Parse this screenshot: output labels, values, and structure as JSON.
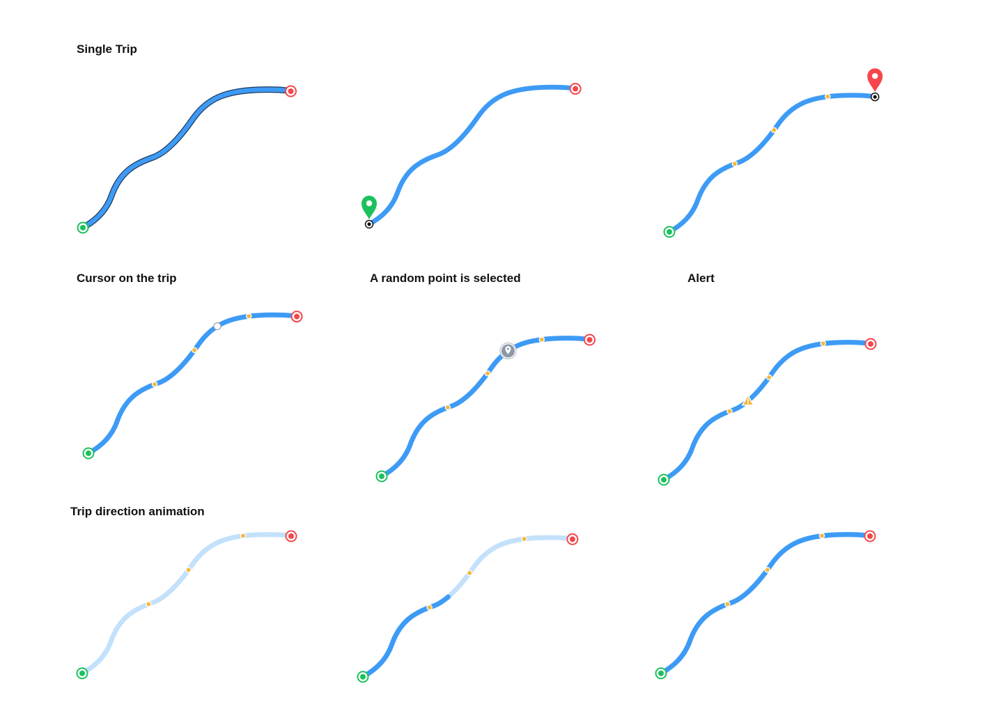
{
  "sections": {
    "single_trip": {
      "title": "Single Trip"
    },
    "cursor_on_trip": {
      "title": "Cursor on the trip"
    },
    "random_point": {
      "title": "A random point is selected"
    },
    "alert": {
      "title": "Alert"
    },
    "direction_animation": {
      "title": "Trip direction animation"
    }
  },
  "panels": [
    {
      "id": "single-trip-selected",
      "state": "route-selected",
      "stops": 0,
      "start_pin": false,
      "end_pin": false
    },
    {
      "id": "single-trip-start-pin",
      "state": "start-pin",
      "stops": 0,
      "start_pin": true,
      "end_pin": false
    },
    {
      "id": "single-trip-end-pin",
      "state": "end-pin-with-stops",
      "stops": 3,
      "start_pin": false,
      "end_pin": true
    },
    {
      "id": "cursor-on-trip",
      "state": "hover-cursor",
      "stops": 3
    },
    {
      "id": "random-point-selected",
      "state": "selected-point",
      "stops": 3
    },
    {
      "id": "alert-on-trip",
      "state": "alert",
      "stops": 3
    },
    {
      "id": "animation-frame-1",
      "state": "animation",
      "progress": 0.0,
      "stops": 3
    },
    {
      "id": "animation-frame-2",
      "state": "animation",
      "progress": 0.45,
      "stops": 3
    },
    {
      "id": "animation-frame-3",
      "state": "animation",
      "progress": 1.0,
      "stops": 3
    }
  ],
  "icons": {
    "start": "start-point-icon",
    "end": "end-point-icon",
    "stop": "stop-dot-icon",
    "start_pin": "start-map-pin-icon",
    "end_pin": "end-map-pin-icon",
    "cursor": "cursor-dot-icon",
    "selected": "selected-location-icon",
    "alert": "alert-warning-icon"
  },
  "colors": {
    "route": "#3D9BF5",
    "route_faded": "#C3E1FB",
    "route_outline": "#1E3A5F",
    "start": "#1CC15C",
    "end": "#F5474B",
    "stop": "#F6B73C",
    "selected": "#8E97A6",
    "alert": "#F6B73C"
  }
}
